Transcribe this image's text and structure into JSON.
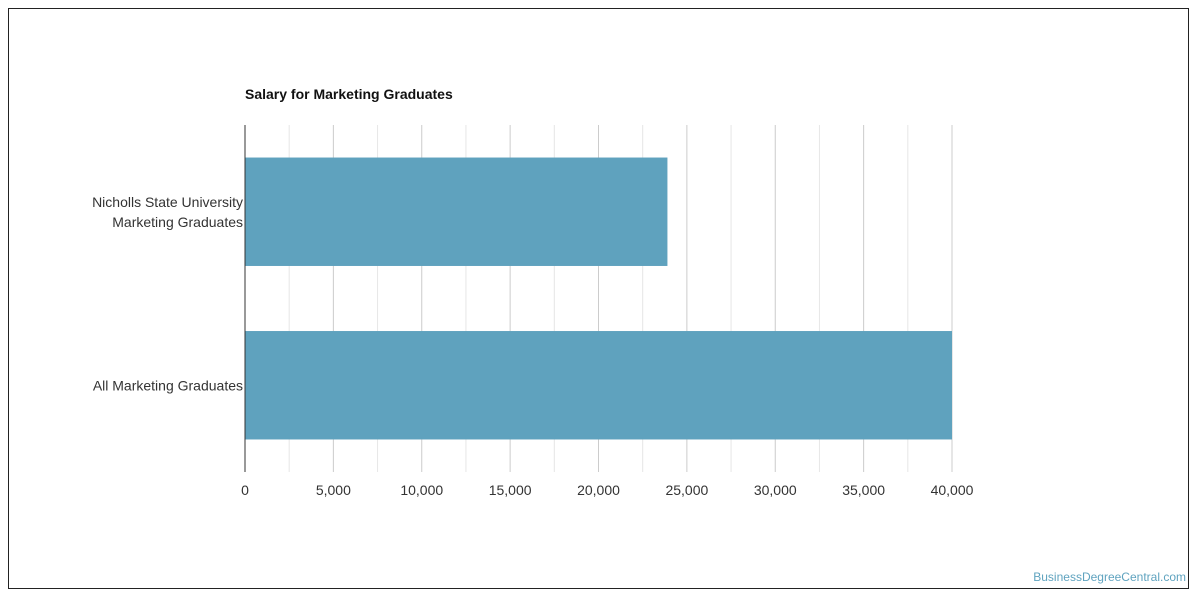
{
  "chart_data": {
    "type": "bar",
    "orientation": "horizontal",
    "title": "Salary for Marketing Graduates",
    "categories": [
      [
        "Nicholls State University",
        "Marketing Graduates"
      ],
      [
        "All Marketing Graduates"
      ]
    ],
    "values": [
      23900,
      40000
    ],
    "xlim": [
      0,
      40000
    ],
    "x_ticks": [
      0,
      5000,
      10000,
      15000,
      20000,
      25000,
      30000,
      35000,
      40000
    ],
    "x_tick_labels": [
      "0",
      "5,000",
      "10,000",
      "15,000",
      "20,000",
      "25,000",
      "30,000",
      "35,000",
      "40,000"
    ],
    "grid": true,
    "bar_color": "#5fa2be"
  },
  "watermark": "BusinessDegreeCentral.com"
}
